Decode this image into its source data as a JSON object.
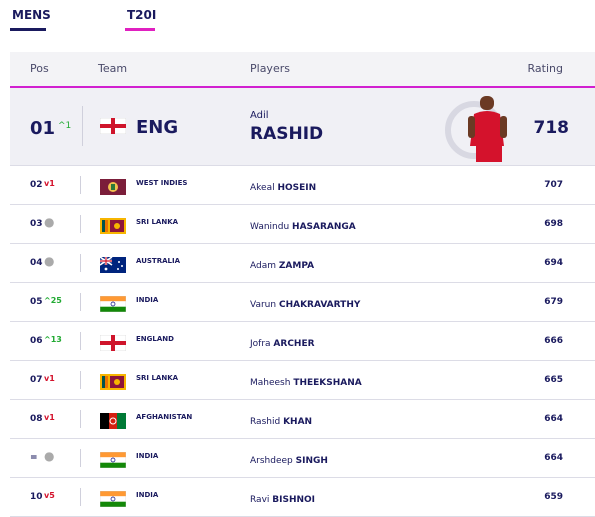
{
  "tabs": [
    {
      "label": "MENS",
      "color": "#1a1a5e"
    },
    {
      "label": "T20I",
      "color": "#e020c0"
    }
  ],
  "header": {
    "pos": "Pos",
    "team": "Team",
    "players": "Players",
    "rating": "Rating"
  },
  "hero": {
    "pos": "01",
    "movement": "1",
    "movement_dir": "up",
    "team": "ENG",
    "flag": "england-flag-icon",
    "first_name": "Adil",
    "last_name": "RASHID",
    "rating": "718"
  },
  "rows": [
    {
      "pos": "02",
      "movement": "1",
      "movement_dir": "down",
      "team": "WEST INDIES",
      "flag": "west-indies-flag-icon",
      "first_name": "Akeal",
      "last_name": "HOSEIN",
      "rating": "707"
    },
    {
      "pos": "03",
      "movement": "",
      "movement_dir": "same",
      "team": "SRI LANKA",
      "flag": "sri-lanka-flag-icon",
      "first_name": "Wanindu",
      "last_name": "HASARANGA",
      "rating": "698"
    },
    {
      "pos": "04",
      "movement": "",
      "movement_dir": "same",
      "team": "AUSTRALIA",
      "flag": "australia-flag-icon",
      "first_name": "Adam",
      "last_name": "ZAMPA",
      "rating": "694"
    },
    {
      "pos": "05",
      "movement": "25",
      "movement_dir": "up",
      "team": "INDIA",
      "flag": "india-flag-icon",
      "first_name": "Varun",
      "last_name": "CHAKRAVARTHY",
      "rating": "679"
    },
    {
      "pos": "06",
      "movement": "13",
      "movement_dir": "up",
      "team": "ENGLAND",
      "flag": "england-flag-icon",
      "first_name": "Jofra",
      "last_name": "ARCHER",
      "rating": "666"
    },
    {
      "pos": "07",
      "movement": "1",
      "movement_dir": "down",
      "team": "SRI LANKA",
      "flag": "sri-lanka-flag-icon",
      "first_name": "Maheesh",
      "last_name": "THEEKSHANA",
      "rating": "665"
    },
    {
      "pos": "08",
      "movement": "1",
      "movement_dir": "down",
      "team": "AFGHANISTAN",
      "flag": "afghanistan-flag-icon",
      "first_name": "Rashid",
      "last_name": "KHAN",
      "rating": "664"
    },
    {
      "pos": "=",
      "movement": "",
      "movement_dir": "same",
      "team": "INDIA",
      "flag": "india-flag-icon",
      "first_name": "Arshdeep",
      "last_name": "SINGH",
      "rating": "664"
    },
    {
      "pos": "10",
      "movement": "5",
      "movement_dir": "down",
      "team": "INDIA",
      "flag": "india-flag-icon",
      "first_name": "Ravi",
      "last_name": "BISHNOI",
      "rating": "659"
    }
  ]
}
